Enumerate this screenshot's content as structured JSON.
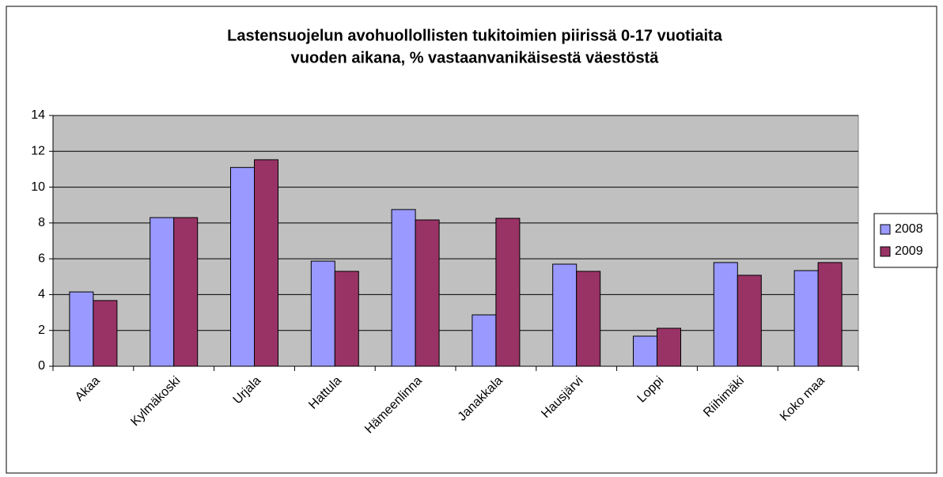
{
  "chart_data": {
    "type": "bar",
    "title": [
      "Lastensuojelun avohuollollisten tukitoimien piirissä 0-17 vuotiaita",
      "vuoden aikana, % vastaanvanikäisestä väestöstä"
    ],
    "categories": [
      "Akaa",
      "Kylmäkoski",
      "Urjala",
      "Hattula",
      "Hämeenlinna",
      "Janakkala",
      "Hausjärvi",
      "Loppi",
      "Riihimäki",
      "Koko maa"
    ],
    "series": [
      {
        "name": "2008",
        "color": "#9999ff",
        "values": [
          4.15,
          8.3,
          11.1,
          5.87,
          8.75,
          2.87,
          5.7,
          1.68,
          5.79,
          5.34
        ]
      },
      {
        "name": "2009",
        "color": "#993366",
        "values": [
          3.67,
          8.3,
          11.53,
          5.3,
          8.17,
          8.26,
          5.3,
          2.12,
          5.08,
          5.79
        ]
      }
    ],
    "ylim": [
      0,
      14
    ],
    "yticks": [
      0,
      2,
      4,
      6,
      8,
      10,
      12,
      14
    ],
    "grid": true,
    "legend": "right"
  }
}
